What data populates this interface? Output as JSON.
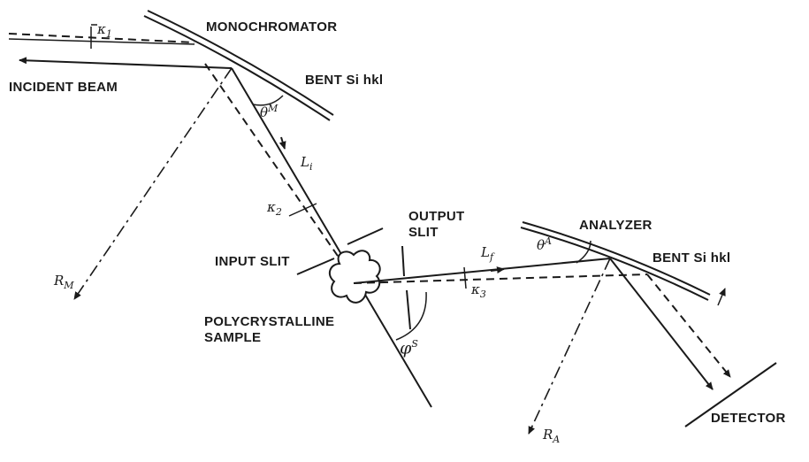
{
  "labels": {
    "monochromator": "MONOCHROMATOR",
    "incident_beam": "INCIDENT BEAM",
    "bent_si_hkl_mono": "BENT Si hkl",
    "output_slit_line1": "OUTPUT",
    "output_slit_line2": "SLIT",
    "analyzer": "ANALYZER",
    "bent_si_hkl_analyzer": "BENT Si hkl",
    "input_slit": "INPUT SLIT",
    "sample_line1": "POLYCRYSTALLINE",
    "sample_line2": "SAMPLE",
    "detector": "DETECTOR"
  },
  "symbols": {
    "kappa1": {
      "base": "κ",
      "sub": "1"
    },
    "kappa2": {
      "base": "κ",
      "sub": "2"
    },
    "kappa3": {
      "base": "κ",
      "sub": "3"
    },
    "theta_m": {
      "base": "θ",
      "sup": "M"
    },
    "theta_a": {
      "base": "θ",
      "sup": "A"
    },
    "l_i": {
      "base": "L",
      "sub": "i"
    },
    "l_f": {
      "base": "L",
      "sub": "f"
    },
    "r_m": {
      "base": "R",
      "sub": "M"
    },
    "r_a": {
      "base": "R",
      "sub": "A"
    },
    "phi_s": {
      "base": "φ",
      "sup": "S"
    }
  }
}
